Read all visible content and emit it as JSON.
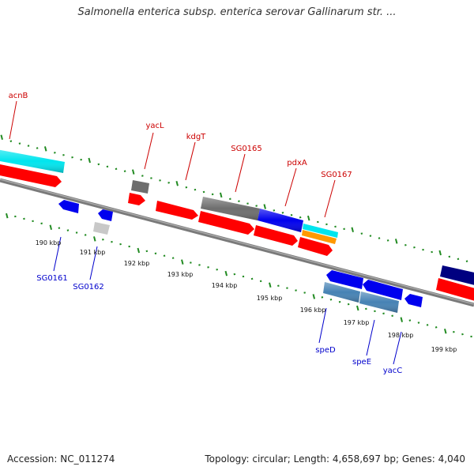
{
  "title": "Salmonella enterica subsp. enterica serovar Gallinarum str. ...",
  "footer": {
    "accession": "Accession: NC_011274",
    "topology": "Topology: circular; Length: 4,658,697 bp; Genes: 4,040"
  },
  "colors": {
    "label_forward": "#cc0000",
    "label_reverse": "#0000cc",
    "tick": "#228b22",
    "backbone": "#808080"
  },
  "scale": {
    "unit": "kbp",
    "ticks": [
      "190 kbp",
      "191 kbp",
      "192 kbp",
      "193 kbp",
      "194 kbp",
      "195 kbp",
      "196 kbp",
      "197 kbp",
      "198 kbp",
      "199 kbp"
    ]
  },
  "gene_labels": {
    "forward": [
      "acnB",
      "yacL",
      "kdgT",
      "SG0165",
      "pdxA",
      "SG0167"
    ],
    "reverse": [
      "SG0161",
      "SG0162",
      "speD",
      "speE",
      "yacC"
    ]
  },
  "feature_colors": {
    "cds": "#ff0000",
    "gene_dark": "#6e6e6e",
    "gene_blue": "#0000ee",
    "gene_cyan": "#00e5ee",
    "gene_orange": "#ff9900",
    "gene_steel": "#4682b4",
    "gene_light": "#c8c8c8",
    "gene_navy": "#000080"
  }
}
